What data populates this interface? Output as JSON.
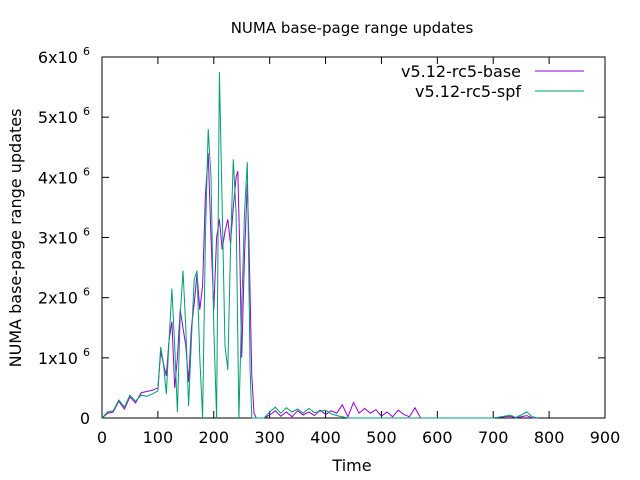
{
  "chart_data": {
    "type": "line",
    "title": "NUMA base-page range updates",
    "xlabel": "Time",
    "ylabel": "NUMA base-page range updates",
    "xlim": [
      0,
      900
    ],
    "ylim": [
      0,
      6000000
    ],
    "x_ticks": [
      0,
      100,
      200,
      300,
      400,
      500,
      600,
      700,
      800,
      900
    ],
    "y_ticks": [
      {
        "value": 0,
        "mantissa": "0",
        "exp": ""
      },
      {
        "value": 1000000,
        "mantissa": "1x10",
        "exp": "6"
      },
      {
        "value": 2000000,
        "mantissa": "2x10",
        "exp": "6"
      },
      {
        "value": 3000000,
        "mantissa": "3x10",
        "exp": "6"
      },
      {
        "value": 4000000,
        "mantissa": "4x10",
        "exp": "6"
      },
      {
        "value": 5000000,
        "mantissa": "5x10",
        "exp": "6"
      },
      {
        "value": 6000000,
        "mantissa": "6x10",
        "exp": "6"
      }
    ],
    "grid": false,
    "legend_position": "top-right",
    "series": [
      {
        "name": "v5.12-rc5-base",
        "color": "#9400d3",
        "points": [
          [
            0,
            0
          ],
          [
            10,
            80000
          ],
          [
            20,
            100000
          ],
          [
            30,
            280000
          ],
          [
            40,
            150000
          ],
          [
            50,
            350000
          ],
          [
            60,
            250000
          ],
          [
            70,
            420000
          ],
          [
            80,
            440000
          ],
          [
            90,
            460000
          ],
          [
            100,
            500000
          ],
          [
            105,
            1100000
          ],
          [
            110,
            900000
          ],
          [
            115,
            700000
          ],
          [
            120,
            1300000
          ],
          [
            125,
            1600000
          ],
          [
            130,
            500000
          ],
          [
            135,
            1000000
          ],
          [
            140,
            1800000
          ],
          [
            145,
            1500000
          ],
          [
            150,
            1200000
          ],
          [
            155,
            600000
          ],
          [
            160,
            1500000
          ],
          [
            165,
            1900000
          ],
          [
            170,
            2400000
          ],
          [
            175,
            1800000
          ],
          [
            180,
            2200000
          ],
          [
            185,
            3700000
          ],
          [
            190,
            4400000
          ],
          [
            195,
            3000000
          ],
          [
            200,
            1800000
          ],
          [
            205,
            3000000
          ],
          [
            210,
            3300000
          ],
          [
            215,
            2800000
          ],
          [
            220,
            3100000
          ],
          [
            225,
            3300000
          ],
          [
            230,
            2900000
          ],
          [
            235,
            3500000
          ],
          [
            240,
            4000000
          ],
          [
            243,
            4100000
          ],
          [
            246,
            3000000
          ],
          [
            250,
            1000000
          ],
          [
            255,
            2700000
          ],
          [
            260,
            3900000
          ],
          [
            263,
            2900000
          ],
          [
            268,
            700000
          ],
          [
            272,
            80000
          ],
          [
            276,
            0
          ],
          [
            280,
            0
          ],
          [
            290,
            0
          ],
          [
            300,
            50000
          ],
          [
            310,
            120000
          ],
          [
            320,
            30000
          ],
          [
            330,
            100000
          ],
          [
            340,
            20000
          ],
          [
            350,
            120000
          ],
          [
            360,
            50000
          ],
          [
            370,
            100000
          ],
          [
            380,
            40000
          ],
          [
            390,
            130000
          ],
          [
            400,
            60000
          ],
          [
            410,
            120000
          ],
          [
            420,
            80000
          ],
          [
            430,
            220000
          ],
          [
            440,
            20000
          ],
          [
            450,
            260000
          ],
          [
            460,
            80000
          ],
          [
            470,
            160000
          ],
          [
            480,
            80000
          ],
          [
            490,
            140000
          ],
          [
            500,
            30000
          ],
          [
            510,
            100000
          ],
          [
            520,
            20000
          ],
          [
            530,
            130000
          ],
          [
            540,
            60000
          ],
          [
            550,
            20000
          ],
          [
            560,
            170000
          ],
          [
            570,
            0
          ],
          [
            600,
            0
          ],
          [
            700,
            0
          ],
          [
            720,
            20000
          ],
          [
            730,
            30000
          ],
          [
            740,
            0
          ],
          [
            750,
            20000
          ],
          [
            760,
            40000
          ],
          [
            770,
            0
          ],
          [
            780,
            0
          ]
        ]
      },
      {
        "name": "v5.12-rc5-spf",
        "color": "#009e73",
        "points": [
          [
            0,
            0
          ],
          [
            10,
            100000
          ],
          [
            20,
            120000
          ],
          [
            30,
            300000
          ],
          [
            40,
            180000
          ],
          [
            50,
            380000
          ],
          [
            60,
            280000
          ],
          [
            70,
            380000
          ],
          [
            80,
            360000
          ],
          [
            90,
            400000
          ],
          [
            100,
            450000
          ],
          [
            105,
            1180000
          ],
          [
            110,
            900000
          ],
          [
            115,
            400000
          ],
          [
            120,
            1300000
          ],
          [
            125,
            2150000
          ],
          [
            130,
            1200000
          ],
          [
            135,
            100000
          ],
          [
            140,
            1700000
          ],
          [
            145,
            2450000
          ],
          [
            150,
            1500000
          ],
          [
            155,
            200000
          ],
          [
            160,
            1300000
          ],
          [
            165,
            2300000
          ],
          [
            170,
            2450000
          ],
          [
            175,
            1000000
          ],
          [
            180,
            0
          ],
          [
            185,
            3000000
          ],
          [
            190,
            4800000
          ],
          [
            195,
            4000000
          ],
          [
            200,
            1500000
          ],
          [
            205,
            0
          ],
          [
            210,
            5750000
          ],
          [
            215,
            3500000
          ],
          [
            220,
            1200000
          ],
          [
            225,
            800000
          ],
          [
            230,
            2800000
          ],
          [
            235,
            4300000
          ],
          [
            240,
            3400000
          ],
          [
            245,
            0
          ],
          [
            250,
            1800000
          ],
          [
            255,
            3400000
          ],
          [
            260,
            4250000
          ],
          [
            265,
            800000
          ],
          [
            268,
            0
          ],
          [
            270,
            0
          ],
          [
            290,
            0
          ],
          [
            300,
            100000
          ],
          [
            310,
            180000
          ],
          [
            320,
            80000
          ],
          [
            330,
            170000
          ],
          [
            340,
            100000
          ],
          [
            350,
            150000
          ],
          [
            360,
            80000
          ],
          [
            370,
            160000
          ],
          [
            380,
            90000
          ],
          [
            390,
            110000
          ],
          [
            400,
            130000
          ],
          [
            410,
            70000
          ],
          [
            420,
            40000
          ],
          [
            430,
            20000
          ],
          [
            440,
            0
          ],
          [
            460,
            0
          ],
          [
            500,
            0
          ],
          [
            600,
            0
          ],
          [
            700,
            0
          ],
          [
            720,
            30000
          ],
          [
            730,
            50000
          ],
          [
            740,
            10000
          ],
          [
            750,
            50000
          ],
          [
            760,
            100000
          ],
          [
            770,
            20000
          ],
          [
            780,
            0
          ]
        ]
      }
    ]
  }
}
